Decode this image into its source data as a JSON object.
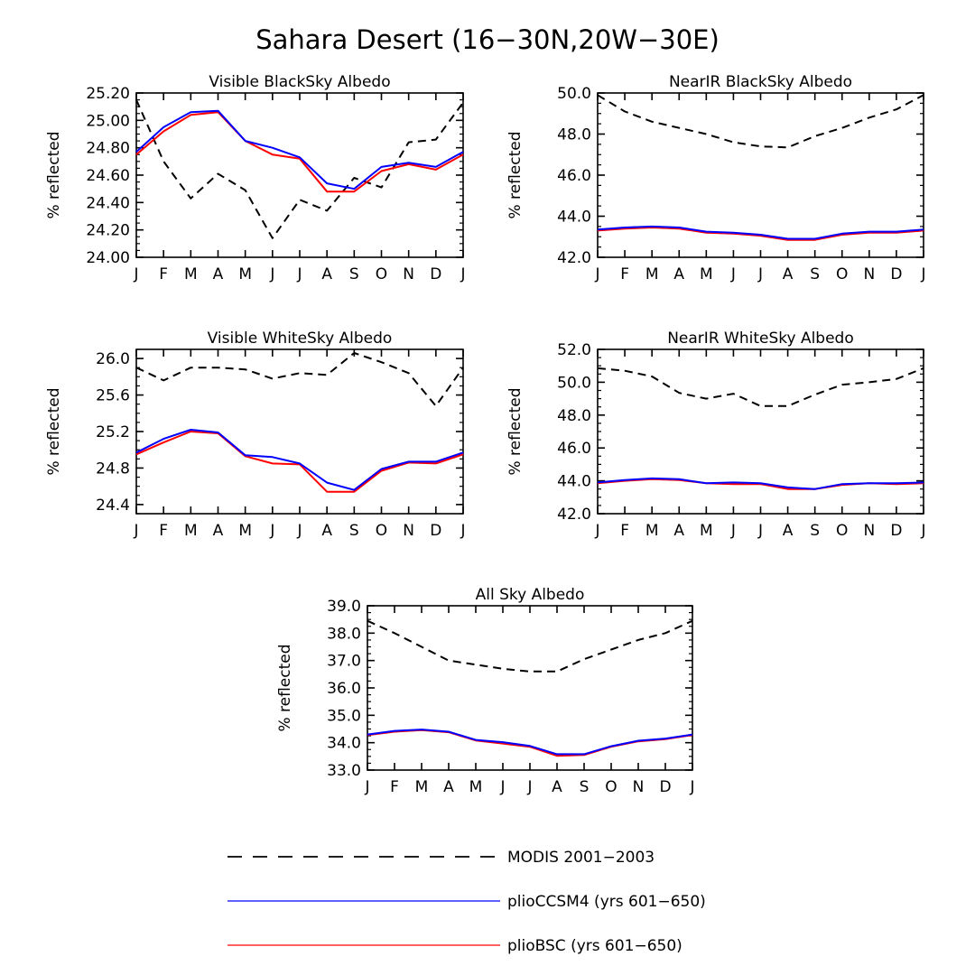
{
  "figure_title": "Sahara Desert (16−30N,20W−30E)",
  "legend": [
    {
      "label": "MODIS 2001−2003",
      "color": "#000000",
      "dash": true
    },
    {
      "label": "plioCCSM4 (yrs 601−650)",
      "color": "#0000ff",
      "dash": false
    },
    {
      "label": "plioBSC (yrs 601−650)",
      "color": "#ff0000",
      "dash": false
    }
  ],
  "chart_data": [
    {
      "type": "line",
      "title": "Visible BlackSky Albedo",
      "xlabel": "",
      "ylabel": "% reflected",
      "categories": [
        "J",
        "F",
        "M",
        "A",
        "M",
        "J",
        "J",
        "A",
        "S",
        "O",
        "N",
        "D",
        "J"
      ],
      "ylim": [
        24.0,
        25.2
      ],
      "yticks": [
        "24.00",
        "24.20",
        "24.40",
        "24.60",
        "24.80",
        "25.00",
        "25.20"
      ],
      "series": [
        {
          "name": "MODIS 2001−2003",
          "values": [
            25.15,
            24.7,
            24.43,
            24.61,
            24.49,
            24.14,
            24.42,
            24.34,
            24.58,
            24.51,
            24.84,
            24.86,
            25.13
          ]
        },
        {
          "name": "plioCCSM4 (yrs 601−650)",
          "values": [
            24.77,
            24.95,
            25.06,
            25.07,
            24.85,
            24.8,
            24.73,
            24.54,
            24.5,
            24.66,
            24.69,
            24.66,
            24.77
          ]
        },
        {
          "name": "plioBSC (yrs 601−650)",
          "values": [
            24.75,
            24.92,
            25.04,
            25.06,
            24.85,
            24.75,
            24.72,
            24.48,
            24.48,
            24.63,
            24.68,
            24.64,
            24.75
          ]
        }
      ]
    },
    {
      "type": "line",
      "title": "NearIR BlackSky Albedo",
      "xlabel": "",
      "ylabel": "% reflected",
      "categories": [
        "J",
        "F",
        "M",
        "A",
        "M",
        "J",
        "J",
        "A",
        "S",
        "O",
        "N",
        "D",
        "J"
      ],
      "ylim": [
        42.0,
        50.0
      ],
      "yticks": [
        "42.0",
        "44.0",
        "46.0",
        "48.0",
        "50.0"
      ],
      "series": [
        {
          "name": "MODIS 2001−2003",
          "values": [
            49.9,
            49.1,
            48.6,
            48.3,
            48.0,
            47.6,
            47.4,
            47.35,
            47.9,
            48.3,
            48.8,
            49.2,
            49.9
          ]
        },
        {
          "name": "plioCCSM4 (yrs 601−650)",
          "values": [
            43.35,
            43.45,
            43.5,
            43.45,
            43.25,
            43.2,
            43.1,
            42.9,
            42.9,
            43.15,
            43.25,
            43.25,
            43.35
          ]
        },
        {
          "name": "plioBSC (yrs 601−650)",
          "values": [
            43.3,
            43.4,
            43.45,
            43.4,
            43.2,
            43.15,
            43.05,
            42.85,
            42.85,
            43.1,
            43.2,
            43.2,
            43.3
          ]
        }
      ]
    },
    {
      "type": "line",
      "title": "Visible WhiteSky Albedo",
      "xlabel": "",
      "ylabel": "% reflected",
      "categories": [
        "J",
        "F",
        "M",
        "A",
        "M",
        "J",
        "J",
        "A",
        "S",
        "O",
        "N",
        "D",
        "J"
      ],
      "ylim": [
        24.3,
        26.1
      ],
      "yticks": [
        "24.4",
        "24.8",
        "25.2",
        "25.6",
        "26.0"
      ],
      "series": [
        {
          "name": "MODIS 2001−2003",
          "values": [
            25.9,
            25.76,
            25.9,
            25.9,
            25.88,
            25.78,
            25.84,
            25.82,
            26.06,
            25.96,
            25.84,
            25.48,
            25.9
          ]
        },
        {
          "name": "plioCCSM4 (yrs 601−650)",
          "values": [
            24.97,
            25.12,
            25.22,
            25.19,
            24.94,
            24.92,
            24.85,
            24.64,
            24.56,
            24.79,
            24.87,
            24.87,
            24.97
          ]
        },
        {
          "name": "plioBSC (yrs 601−650)",
          "values": [
            24.95,
            25.08,
            25.2,
            25.18,
            24.93,
            24.85,
            24.84,
            24.54,
            24.54,
            24.77,
            24.86,
            24.85,
            24.95
          ]
        }
      ]
    },
    {
      "type": "line",
      "title": "NearIR WhiteSky Albedo",
      "xlabel": "",
      "ylabel": "% reflected",
      "categories": [
        "J",
        "F",
        "M",
        "A",
        "M",
        "J",
        "J",
        "A",
        "S",
        "O",
        "N",
        "D",
        "J"
      ],
      "ylim": [
        42.0,
        52.0
      ],
      "yticks": [
        "42.0",
        "44.0",
        "46.0",
        "48.0",
        "50.0",
        "52.0"
      ],
      "series": [
        {
          "name": "MODIS 2001−2003",
          "values": [
            50.85,
            50.7,
            50.35,
            49.35,
            49.0,
            49.3,
            48.55,
            48.55,
            49.25,
            49.85,
            50.0,
            50.2,
            50.85
          ]
        },
        {
          "name": "plioCCSM4 (yrs 601−650)",
          "values": [
            43.9,
            44.05,
            44.15,
            44.1,
            43.85,
            43.9,
            43.85,
            43.6,
            43.5,
            43.8,
            43.85,
            43.85,
            43.9
          ]
        },
        {
          "name": "plioBSC (yrs 601−650)",
          "values": [
            43.85,
            44.0,
            44.1,
            44.05,
            43.85,
            43.8,
            43.8,
            43.5,
            43.5,
            43.75,
            43.85,
            43.8,
            43.85
          ]
        }
      ]
    },
    {
      "type": "line",
      "title": "All Sky Albedo",
      "xlabel": "",
      "ylabel": "% reflected",
      "categories": [
        "J",
        "F",
        "M",
        "A",
        "M",
        "J",
        "J",
        "A",
        "S",
        "O",
        "N",
        "D",
        "J"
      ],
      "ylim": [
        33.0,
        39.0
      ],
      "yticks": [
        "33.0",
        "34.0",
        "35.0",
        "36.0",
        "37.0",
        "38.0",
        "39.0"
      ],
      "series": [
        {
          "name": "MODIS 2001−2003",
          "values": [
            38.45,
            38.0,
            37.5,
            37.0,
            36.85,
            36.7,
            36.6,
            36.6,
            37.05,
            37.4,
            37.75,
            38.0,
            38.45
          ]
        },
        {
          "name": "plioCCSM4 (yrs 601−650)",
          "values": [
            34.3,
            34.43,
            34.48,
            34.4,
            34.1,
            34.02,
            33.88,
            33.58,
            33.58,
            33.87,
            34.07,
            34.15,
            34.3
          ]
        },
        {
          "name": "plioBSC (yrs 601−650)",
          "values": [
            34.28,
            34.4,
            34.46,
            34.38,
            34.08,
            33.97,
            33.85,
            33.52,
            33.55,
            33.85,
            34.05,
            34.13,
            34.28
          ]
        }
      ]
    }
  ]
}
